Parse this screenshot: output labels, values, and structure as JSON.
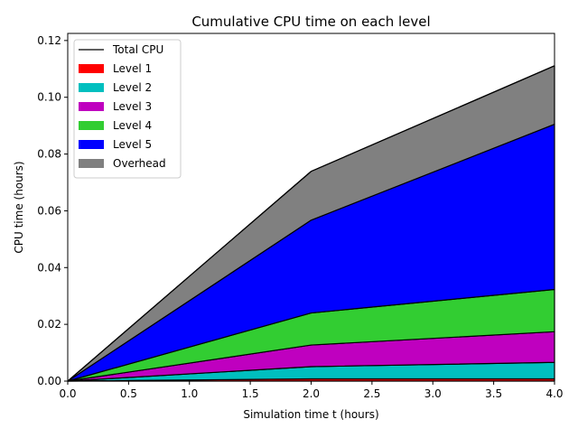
{
  "chart_data": {
    "type": "area",
    "title": "Cumulative CPU time on each level",
    "xlabel": "Simulation time t (hours)",
    "ylabel": "CPU time (hours)",
    "xlim": [
      0.0,
      4.0
    ],
    "ylim": [
      0.0,
      0.1225
    ],
    "xticks": [
      "0.0",
      "0.5",
      "1.0",
      "1.5",
      "2.0",
      "2.5",
      "3.0",
      "3.5",
      "4.0"
    ],
    "yticks": [
      "0.00",
      "0.02",
      "0.04",
      "0.06",
      "0.08",
      "0.10",
      "0.12"
    ],
    "x": [
      0.0,
      2.0,
      4.0
    ],
    "stacked": true,
    "series": [
      {
        "name": "Level 1",
        "color": "#ff0000",
        "values": [
          0.0,
          0.0008,
          0.0008
        ]
      },
      {
        "name": "Level 2",
        "color": "#00bfbf",
        "values": [
          0.0,
          0.0043,
          0.0058
        ]
      },
      {
        "name": "Level 3",
        "color": "#bf00bf",
        "values": [
          0.0,
          0.0076,
          0.0108
        ]
      },
      {
        "name": "Level 4",
        "color": "#32cd32",
        "values": [
          0.0,
          0.0113,
          0.0149
        ]
      },
      {
        "name": "Level 5",
        "color": "#0000ff",
        "values": [
          0.0,
          0.0327,
          0.0582
        ]
      },
      {
        "name": "Overhead",
        "color": "#808080",
        "values": [
          0.0,
          0.0172,
          0.0206
        ]
      }
    ],
    "total": {
      "name": "Total CPU",
      "color": "#000000",
      "values": [
        0.0,
        0.0739,
        0.1111
      ]
    },
    "legend_position": "top-left",
    "grid": false
  }
}
